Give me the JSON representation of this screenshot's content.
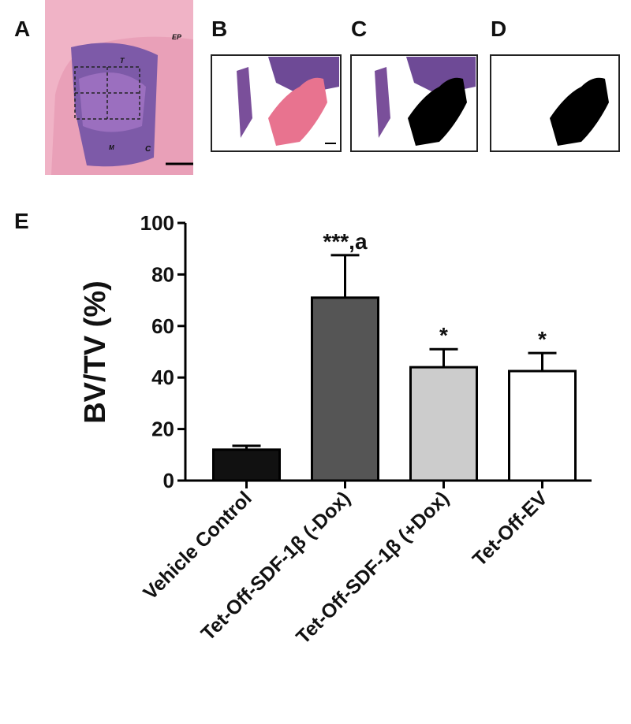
{
  "panel_labels": [
    "A",
    "B",
    "C",
    "D",
    "E"
  ],
  "panel_a_labels": [
    "EP",
    "T",
    "C",
    "M"
  ],
  "chart_data": {
    "type": "bar",
    "ylabel": "BV/TV (%)",
    "categories": [
      "Vehicle Control",
      "Tet-Off-SDF-1β (-Dox)",
      "Tet-Off-SDF-1β (+Dox)",
      "Tet-Off-EV"
    ],
    "values": [
      12,
      71,
      44,
      42.5
    ],
    "errors": [
      1.5,
      16.5,
      7,
      7
    ],
    "colors": [
      "#111111",
      "#555555",
      "#cccccc",
      "#ffffff"
    ],
    "annotations": [
      null,
      "***,a",
      "*",
      "*"
    ],
    "ylim": [
      0,
      100
    ],
    "yticks": [
      0,
      20,
      40,
      60,
      80,
      100
    ]
  }
}
